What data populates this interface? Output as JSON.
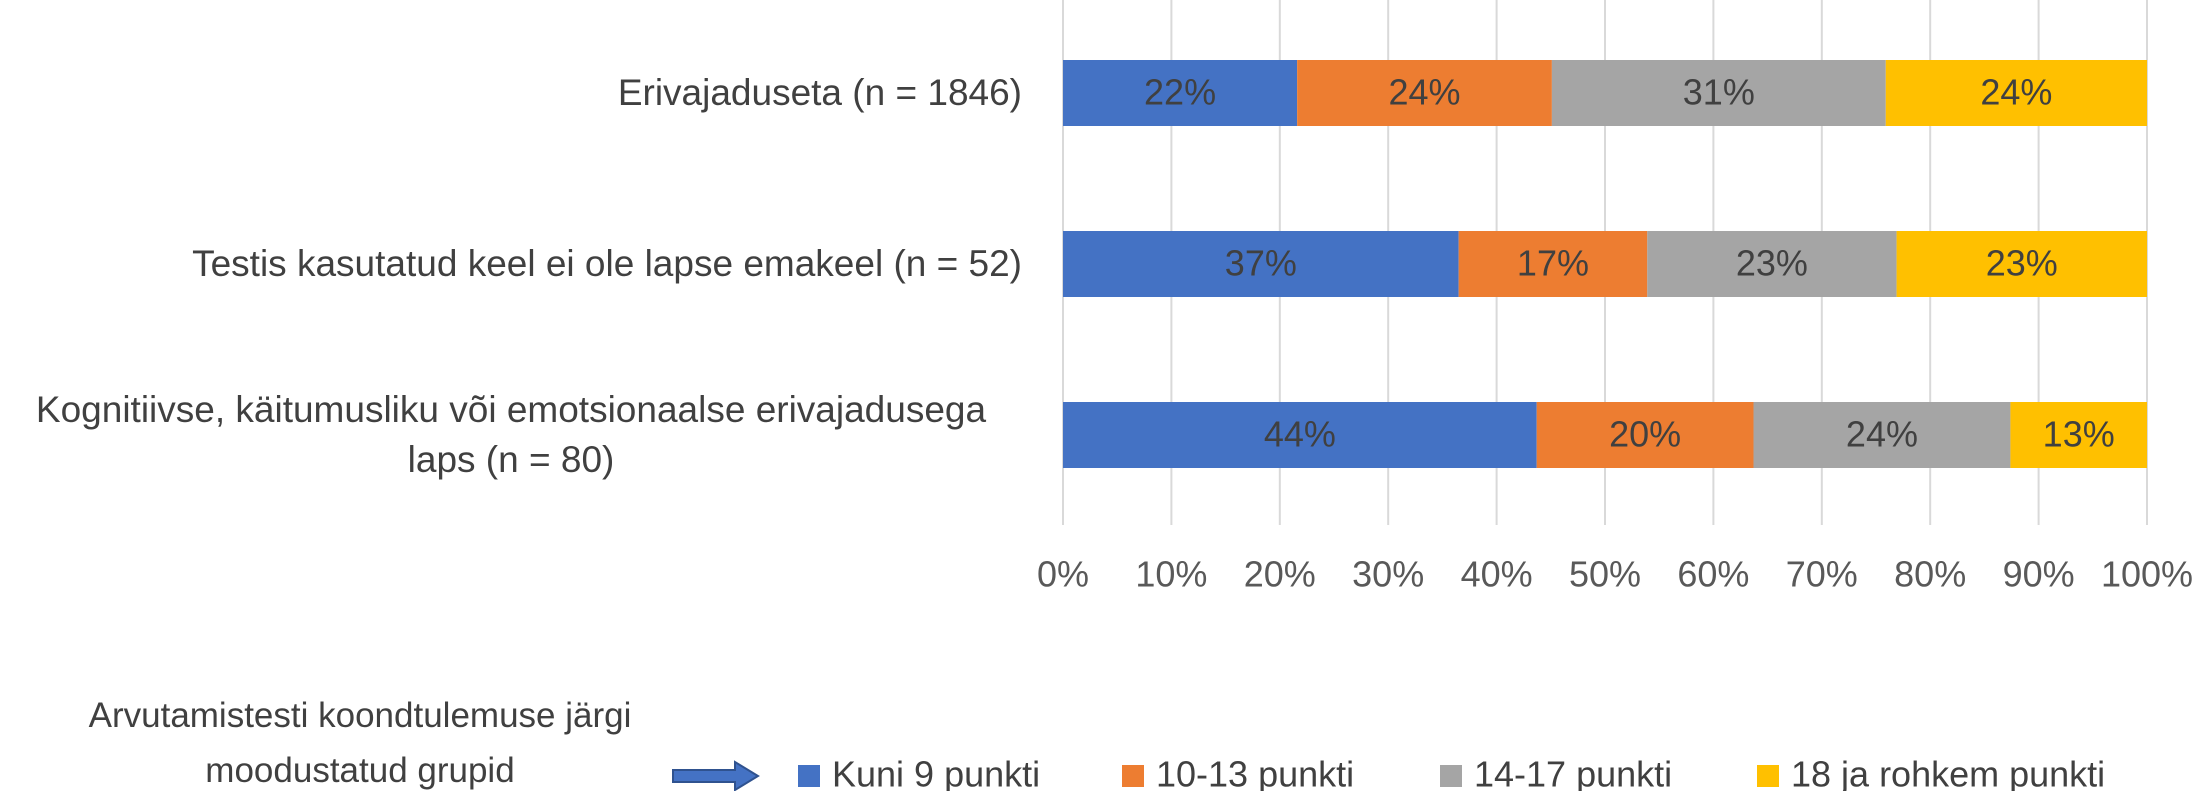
{
  "chart_data": {
    "type": "stacked_bar_horizontal",
    "categories": [
      "Erivajaduseta (n = 1846)",
      "Testis kasutatud keel ei ole lapse emakeel (n = 52)",
      "Kognitiivse, käitumusliku või emotsionaalse erivajadusega laps (n = 80)"
    ],
    "series": [
      {
        "name": "Kuni 9 punkti",
        "color": "#4472c4",
        "values": [
          21.6,
          36.5,
          43.7
        ],
        "value_labels": [
          "22%",
          "37%",
          "44%"
        ]
      },
      {
        "name": "10-13 punkti",
        "color": "#ed7d31",
        "values": [
          23.5,
          17.4,
          20.0
        ],
        "value_labels": [
          "24%",
          "17%",
          "20%"
        ]
      },
      {
        "name": "14-17 punkti",
        "color": "#a5a5a5",
        "values": [
          30.8,
          23.0,
          23.7
        ],
        "value_labels": [
          "31%",
          "23%",
          "24%"
        ]
      },
      {
        "name": "18 ja rohkem punkti",
        "color": "#ffc000",
        "values": [
          24.1,
          23.1,
          12.6
        ],
        "value_labels": [
          "24%",
          "23%",
          "13%"
        ]
      }
    ],
    "xlim": [
      0,
      100
    ],
    "xticks": [
      {
        "value": 0,
        "label": "0%"
      },
      {
        "value": 10,
        "label": "10%"
      },
      {
        "value": 20,
        "label": "20%"
      },
      {
        "value": 30,
        "label": "30%"
      },
      {
        "value": 40,
        "label": "40%"
      },
      {
        "value": 50,
        "label": "50%"
      },
      {
        "value": 60,
        "label": "60%"
      },
      {
        "value": 70,
        "label": "70%"
      },
      {
        "value": 80,
        "label": "80%"
      },
      {
        "value": 90,
        "label": "90%"
      },
      {
        "value": 100,
        "label": "100%"
      }
    ],
    "grid": true,
    "legend_title": "Arvutamistesti koondtulemuse järgi moodustatud grupid",
    "legend": "bottom"
  }
}
